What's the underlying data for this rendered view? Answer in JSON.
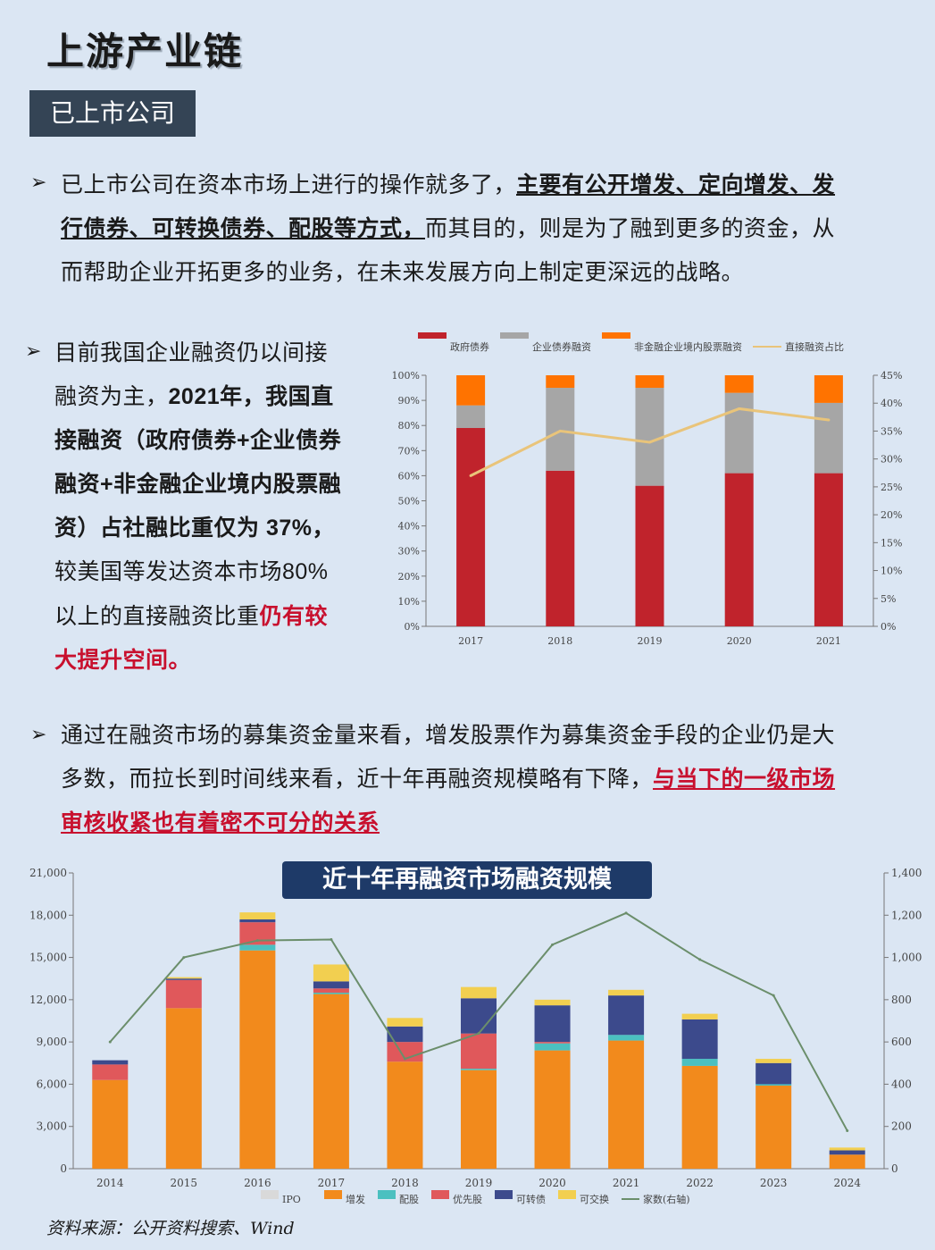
{
  "page": {
    "title": "上游产业链",
    "section_tag": "已上市公司",
    "source": "资料来源：公开资料搜索、Wind"
  },
  "para1": {
    "line1_a": "已上市公司在资本市场上进行的操作就多了，",
    "line1_b": "主要有公开增发、定向增发、发",
    "line2_a": "行债券、可转换债券、配股等方式，",
    "line2_b": "而其目的，则是为了融到更多的资金，从",
    "line3": "而帮助企业开拓更多的业务，在未来发展方向上制定更深远的战略。"
  },
  "para2": {
    "l1": "目前我国企业融资仍以间接",
    "l2_a": "融资为主，",
    "l2_b": "2021年，我国直",
    "l3": "接融资（政府债券+企业债券",
    "l4": "融资+非金融企业境内股票融",
    "l5": "资）占社融比重仅为 37%，",
    "l6": "较美国等发达资本市场80%",
    "l7_a": "以上的直接融资比重",
    "l7_b": "仍有较",
    "l8": "大提升空间。"
  },
  "para3": {
    "l1": "通过在融资市场的募集资金量来看，增发股票作为募集资金手段的企业仍是大",
    "l2_a": "多数，而拉长到时间线来看，近十年再融资规模略有下降，",
    "l2_b": "与当下的一级市场",
    "l3": "审核收紧也有着密不可分的关系"
  },
  "bullet": "➢",
  "chart_data": [
    {
      "type": "bar",
      "stacked": true,
      "percent_stacked": true,
      "title": "",
      "categories": [
        "2017",
        "2018",
        "2019",
        "2020",
        "2021"
      ],
      "series": [
        {
          "name": "政府债券",
          "values": [
            79,
            62,
            56,
            61,
            61
          ],
          "color": "#c0232c"
        },
        {
          "name": "企业债券融资",
          "values": [
            9,
            33,
            39,
            32,
            28
          ],
          "color": "#a6a6a6"
        },
        {
          "name": "非金融企业境内股票融资",
          "values": [
            12,
            5,
            5,
            7,
            11
          ],
          "color": "#ff7300"
        }
      ],
      "line": {
        "name": "直接融资占比",
        "axis": "right",
        "values": [
          27,
          35,
          33,
          39,
          37
        ],
        "color": "#e9c47a"
      },
      "y_ticks": [
        "0%",
        "10%",
        "20%",
        "30%",
        "40%",
        "50%",
        "60%",
        "70%",
        "80%",
        "90%",
        "100%"
      ],
      "y2_ticks": [
        "0%",
        "5%",
        "10%",
        "15%",
        "20%",
        "25%",
        "30%",
        "35%",
        "40%",
        "45%"
      ],
      "ylim": [
        0,
        100
      ],
      "y2lim": [
        0,
        45
      ],
      "legend": "top"
    },
    {
      "type": "bar",
      "stacked": true,
      "title": "近十年再融资市场融资规模",
      "categories": [
        "2014",
        "2015",
        "2016",
        "2017",
        "2018",
        "2019",
        "2020",
        "2021",
        "2022",
        "2023",
        "2024"
      ],
      "series": [
        {
          "name": "IPO",
          "values": [
            0,
            0,
            0,
            0,
            0,
            0,
            0,
            0,
            0,
            0,
            0
          ],
          "color": "#d9d9d9"
        },
        {
          "name": "增发",
          "values": [
            6300,
            11400,
            15500,
            12400,
            7600,
            7000,
            8400,
            9100,
            7300,
            5900,
            1000
          ],
          "color": "#f28a1c"
        },
        {
          "name": "配股",
          "values": [
            0,
            0,
            400,
            100,
            0,
            100,
            500,
            400,
            500,
            100,
            0
          ],
          "color": "#4bc0c0"
        },
        {
          "name": "优先股",
          "values": [
            1100,
            2000,
            1600,
            300,
            1400,
            2500,
            100,
            0,
            0,
            0,
            0
          ],
          "color": "#e0585b"
        },
        {
          "name": "可转债",
          "values": [
            300,
            100,
            200,
            500,
            1100,
            2500,
            2600,
            2800,
            2800,
            1500,
            300
          ],
          "color": "#3c4a8c"
        },
        {
          "name": "可交换",
          "values": [
            0,
            100,
            500,
            1200,
            600,
            800,
            400,
            400,
            400,
            300,
            200
          ],
          "color": "#f2cf50"
        }
      ],
      "line": {
        "name": "家数(右轴)",
        "axis": "right",
        "values": [
          600,
          1000,
          1080,
          1085,
          520,
          640,
          1060,
          1210,
          990,
          820,
          180
        ],
        "color": "#6b8e6b"
      },
      "y_ticks": [
        "0",
        "3,000",
        "6,000",
        "9,000",
        "12,000",
        "15,000",
        "18,000",
        "21,000"
      ],
      "y2_ticks": [
        "0",
        "200",
        "400",
        "600",
        "800",
        "1,000",
        "1,200",
        "1,400"
      ],
      "ylim": [
        0,
        21000
      ],
      "y2lim": [
        0,
        1400
      ],
      "legend": "bottom"
    }
  ]
}
